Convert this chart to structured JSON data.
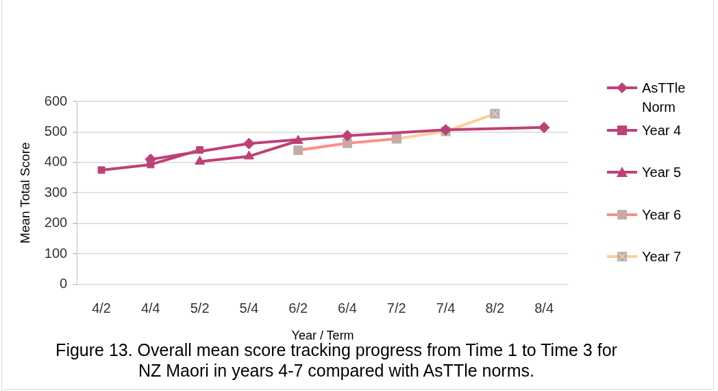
{
  "chart_data": {
    "type": "line",
    "xlabel": "Year / Term",
    "ylabel": "Mean Total Score",
    "categories": [
      "4/2",
      "4/4",
      "5/2",
      "5/4",
      "6/2",
      "6/4",
      "7/2",
      "7/4",
      "8/2",
      "8/4"
    ],
    "series": [
      {
        "name": "AsTTle Norm",
        "color": "#be4176",
        "marker": "diamond",
        "values": [
          null,
          410,
          null,
          462,
          null,
          488,
          null,
          507,
          null,
          515
        ]
      },
      {
        "name": "Year 4",
        "color": "#be4176",
        "marker": "square",
        "values": [
          375,
          393,
          441,
          null,
          null,
          null,
          null,
          null,
          null,
          null
        ]
      },
      {
        "name": "Year 5",
        "color": "#be4176",
        "marker": "triangle",
        "values": [
          null,
          null,
          403,
          420,
          471,
          null,
          null,
          null,
          null,
          null
        ]
      },
      {
        "name": "Year 6",
        "color": "#ff8f85",
        "marker": "cross",
        "values": [
          null,
          null,
          null,
          null,
          440,
          463,
          478,
          null,
          null,
          null
        ]
      },
      {
        "name": "Year 7",
        "color": "#ffcc99",
        "marker": "cross",
        "values": [
          null,
          null,
          null,
          null,
          null,
          null,
          478,
          502,
          560,
          null
        ]
      }
    ],
    "ylim": [
      0,
      600
    ],
    "yticks": [
      0,
      100,
      200,
      300,
      400,
      500,
      600
    ],
    "grid": "y",
    "legend": "right",
    "line_style": "solid",
    "annotations": [
      "Figure 13. Overall mean score tracking progress from Time 1 to Time 3 for NZ Maori in years 4-7 compared with AsTTle norms."
    ]
  }
}
